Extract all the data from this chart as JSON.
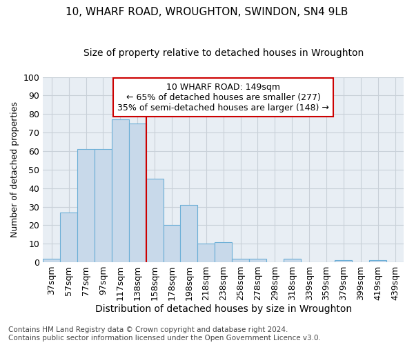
{
  "title": "10, WHARF ROAD, WROUGHTON, SWINDON, SN4 9LB",
  "subtitle": "Size of property relative to detached houses in Wroughton",
  "xlabel": "Distribution of detached houses by size in Wroughton",
  "ylabel": "Number of detached properties",
  "bar_labels": [
    "37sqm",
    "57sqm",
    "77sqm",
    "97sqm",
    "117sqm",
    "138sqm",
    "158sqm",
    "178sqm",
    "198sqm",
    "218sqm",
    "238sqm",
    "258sqm",
    "278sqm",
    "298sqm",
    "318sqm",
    "339sqm",
    "359sqm",
    "379sqm",
    "399sqm",
    "419sqm",
    "439sqm"
  ],
  "bar_values": [
    2,
    27,
    61,
    61,
    77,
    75,
    45,
    20,
    31,
    10,
    11,
    2,
    2,
    0,
    2,
    0,
    0,
    1,
    0,
    1,
    0
  ],
  "bar_color": "#c8d9ea",
  "bar_edge_color": "#6aaed6",
  "highlight_line_color": "#cc0000",
  "annotation_text": "10 WHARF ROAD: 149sqm\n← 65% of detached houses are smaller (277)\n35% of semi-detached houses are larger (148) →",
  "annotation_box_color": "white",
  "annotation_box_edge_color": "#cc0000",
  "ylim": [
    0,
    100
  ],
  "yticks": [
    0,
    10,
    20,
    30,
    40,
    50,
    60,
    70,
    80,
    90,
    100
  ],
  "grid_color": "#c8d0d8",
  "bg_color": "#e8eef4",
  "footer_line1": "Contains HM Land Registry data © Crown copyright and database right 2024.",
  "footer_line2": "Contains public sector information licensed under the Open Government Licence v3.0.",
  "title_fontsize": 11,
  "subtitle_fontsize": 10,
  "xlabel_fontsize": 10,
  "ylabel_fontsize": 9,
  "tick_fontsize": 9,
  "annotation_fontsize": 9,
  "footer_fontsize": 7.5
}
